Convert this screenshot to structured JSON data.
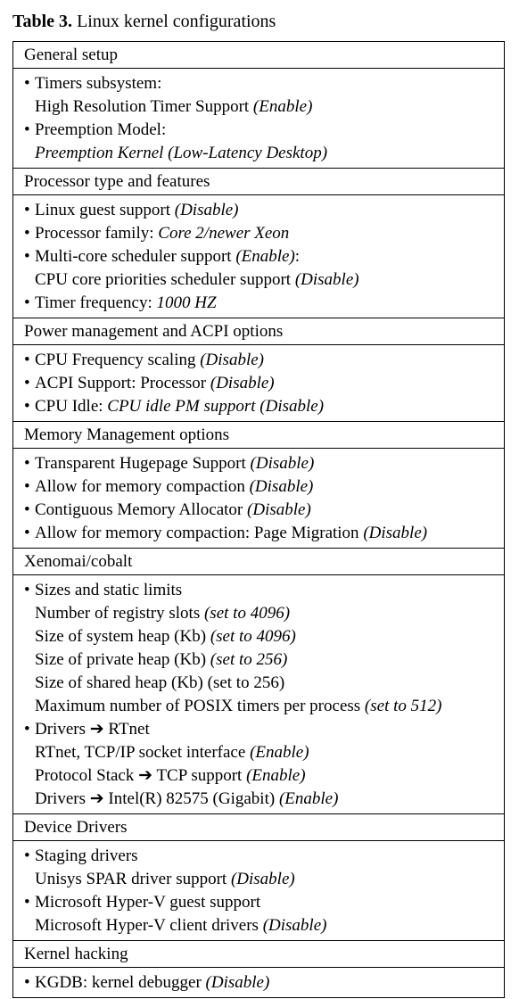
{
  "caption": {
    "label": "Table 3.",
    "text": " Linux kernel configurations"
  },
  "sections": [
    {
      "header": "General setup",
      "lines": [
        {
          "kind": "bullet",
          "segments": [
            {
              "t": "Timers subsystem:",
              "i": false
            }
          ]
        },
        {
          "kind": "sub",
          "segments": [
            {
              "t": "High Resolution Timer Support ",
              "i": false
            },
            {
              "t": "(Enable)",
              "i": true
            }
          ]
        },
        {
          "kind": "bullet",
          "segments": [
            {
              "t": "Preemption Model:",
              "i": false
            }
          ]
        },
        {
          "kind": "sub",
          "segments": [
            {
              "t": "Preemption Kernel (Low-Latency Desktop)",
              "i": true
            }
          ]
        }
      ]
    },
    {
      "header": "Processor type and features",
      "lines": [
        {
          "kind": "bullet",
          "segments": [
            {
              "t": "Linux guest support ",
              "i": false
            },
            {
              "t": "(Disable)",
              "i": true
            }
          ]
        },
        {
          "kind": "bullet",
          "segments": [
            {
              "t": "Processor family: ",
              "i": false
            },
            {
              "t": "Core 2/newer Xeon",
              "i": true
            }
          ]
        },
        {
          "kind": "bullet",
          "segments": [
            {
              "t": "Multi-core scheduler support ",
              "i": false
            },
            {
              "t": "(Enable)",
              "i": true
            },
            {
              "t": ":",
              "i": false
            }
          ]
        },
        {
          "kind": "sub",
          "segments": [
            {
              "t": "CPU core priorities scheduler support ",
              "i": false
            },
            {
              "t": "(Disable)",
              "i": true
            }
          ]
        },
        {
          "kind": "bullet",
          "segments": [
            {
              "t": "Timer frequency: ",
              "i": false
            },
            {
              "t": "1000 HZ",
              "i": true
            }
          ]
        }
      ]
    },
    {
      "header": "Power management and ACPI options",
      "lines": [
        {
          "kind": "bullet",
          "segments": [
            {
              "t": "CPU Frequency scaling ",
              "i": false
            },
            {
              "t": "(Disable)",
              "i": true
            }
          ]
        },
        {
          "kind": "bullet",
          "segments": [
            {
              "t": "ACPI Support: Processor ",
              "i": false
            },
            {
              "t": "(Disable)",
              "i": true
            }
          ]
        },
        {
          "kind": "bullet",
          "segments": [
            {
              "t": "CPU Idle: ",
              "i": false
            },
            {
              "t": "CPU idle PM support (Disable)",
              "i": true
            }
          ]
        }
      ]
    },
    {
      "header": "Memory Management options",
      "lines": [
        {
          "kind": "bullet",
          "segments": [
            {
              "t": "Transparent Hugepage Support ",
              "i": false
            },
            {
              "t": "(Disable)",
              "i": true
            }
          ]
        },
        {
          "kind": "bullet",
          "segments": [
            {
              "t": "Allow for memory compaction ",
              "i": false
            },
            {
              "t": "(Disable)",
              "i": true
            }
          ]
        },
        {
          "kind": "bullet",
          "segments": [
            {
              "t": "Contiguous Memory Allocator ",
              "i": false
            },
            {
              "t": "(Disable)",
              "i": true
            }
          ]
        },
        {
          "kind": "bullet",
          "segments": [
            {
              "t": "Allow for memory compaction: Page Migration ",
              "i": false
            },
            {
              "t": "(Disable)",
              "i": true
            }
          ]
        }
      ]
    },
    {
      "header": "Xenomai/cobalt",
      "lines": [
        {
          "kind": "bullet",
          "segments": [
            {
              "t": "Sizes and static limits",
              "i": false
            }
          ]
        },
        {
          "kind": "sub",
          "segments": [
            {
              "t": "Number of registry slots ",
              "i": false
            },
            {
              "t": "(set to 4096)",
              "i": true
            }
          ]
        },
        {
          "kind": "sub",
          "segments": [
            {
              "t": "Size of system heap (Kb) ",
              "i": false
            },
            {
              "t": "(set to 4096)",
              "i": true
            }
          ]
        },
        {
          "kind": "sub",
          "segments": [
            {
              "t": "Size of private heap (Kb) ",
              "i": false
            },
            {
              "t": "(set to 256)",
              "i": true
            }
          ]
        },
        {
          "kind": "sub",
          "segments": [
            {
              "t": "Size of shared heap (Kb) (set to 256)",
              "i": false
            }
          ]
        },
        {
          "kind": "sub",
          "segments": [
            {
              "t": "Maximum number of POSIX timers per process ",
              "i": false
            },
            {
              "t": "(set to 512)",
              "i": true
            }
          ]
        },
        {
          "kind": "bullet",
          "segments": [
            {
              "t": "Drivers ",
              "i": false
            },
            {
              "t": "➔",
              "i": false
            },
            {
              "t": " RTnet",
              "i": false
            }
          ]
        },
        {
          "kind": "sub",
          "segments": [
            {
              "t": "RTnet, TCP/IP socket interface ",
              "i": false
            },
            {
              "t": "(Enable)",
              "i": true
            }
          ]
        },
        {
          "kind": "sub",
          "segments": [
            {
              "t": "Protocol Stack ",
              "i": false
            },
            {
              "t": "➔",
              "i": false
            },
            {
              "t": " TCP support ",
              "i": false
            },
            {
              "t": "(Enable)",
              "i": true
            }
          ]
        },
        {
          "kind": "sub",
          "segments": [
            {
              "t": "Drivers ",
              "i": false
            },
            {
              "t": "➔",
              "i": false
            },
            {
              "t": " Intel(R) 82575 (Gigabit) ",
              "i": false
            },
            {
              "t": "(Enable)",
              "i": true
            }
          ]
        }
      ]
    },
    {
      "header": "Device Drivers",
      "lines": [
        {
          "kind": "bullet",
          "segments": [
            {
              "t": "Staging drivers",
              "i": false
            }
          ]
        },
        {
          "kind": "sub",
          "segments": [
            {
              "t": "Unisys SPAR driver support ",
              "i": false
            },
            {
              "t": "(Disable)",
              "i": true
            }
          ]
        },
        {
          "kind": "bullet",
          "segments": [
            {
              "t": "Microsoft Hyper-V guest support",
              "i": false
            }
          ]
        },
        {
          "kind": "sub",
          "segments": [
            {
              "t": "Microsoft Hyper-V client drivers ",
              "i": false
            },
            {
              "t": "(Disable)",
              "i": true
            }
          ]
        }
      ]
    },
    {
      "header": "Kernel hacking",
      "lines": [
        {
          "kind": "bullet",
          "segments": [
            {
              "t": "KGDB: kernel debugger ",
              "i": false
            },
            {
              "t": "(Disable)",
              "i": true
            }
          ]
        }
      ]
    }
  ]
}
